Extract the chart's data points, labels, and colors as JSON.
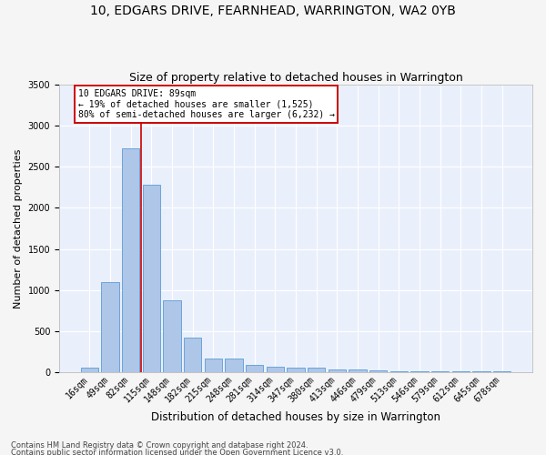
{
  "title": "10, EDGARS DRIVE, FEARNHEAD, WARRINGTON, WA2 0YB",
  "subtitle": "Size of property relative to detached houses in Warrington",
  "xlabel": "Distribution of detached houses by size in Warrington",
  "ylabel": "Number of detached properties",
  "categories": [
    "16sqm",
    "49sqm",
    "82sqm",
    "115sqm",
    "148sqm",
    "182sqm",
    "215sqm",
    "248sqm",
    "281sqm",
    "314sqm",
    "347sqm",
    "380sqm",
    "413sqm",
    "446sqm",
    "479sqm",
    "513sqm",
    "546sqm",
    "579sqm",
    "612sqm",
    "645sqm",
    "678sqm"
  ],
  "values": [
    55,
    1100,
    2730,
    2280,
    880,
    420,
    170,
    165,
    90,
    65,
    55,
    50,
    35,
    30,
    25,
    10,
    10,
    5,
    5,
    5,
    5
  ],
  "bar_color": "#aec6e8",
  "bar_edge_color": "#5b9bd5",
  "vline_color": "#cc0000",
  "annotation_text": "10 EDGARS DRIVE: 89sqm\n← 19% of detached houses are smaller (1,525)\n80% of semi-detached houses are larger (6,232) →",
  "annotation_box_color": "#ffffff",
  "annotation_box_edge": "#cc0000",
  "ylim": [
    0,
    3500
  ],
  "yticks": [
    0,
    500,
    1000,
    1500,
    2000,
    2500,
    3000,
    3500
  ],
  "bg_color": "#eaf0fb",
  "grid_color": "#ffffff",
  "footer1": "Contains HM Land Registry data © Crown copyright and database right 2024.",
  "footer2": "Contains public sector information licensed under the Open Government Licence v3.0.",
  "title_fontsize": 10,
  "subtitle_fontsize": 9,
  "ylabel_fontsize": 8,
  "xlabel_fontsize": 8.5,
  "tick_fontsize": 7,
  "footer_fontsize": 6
}
